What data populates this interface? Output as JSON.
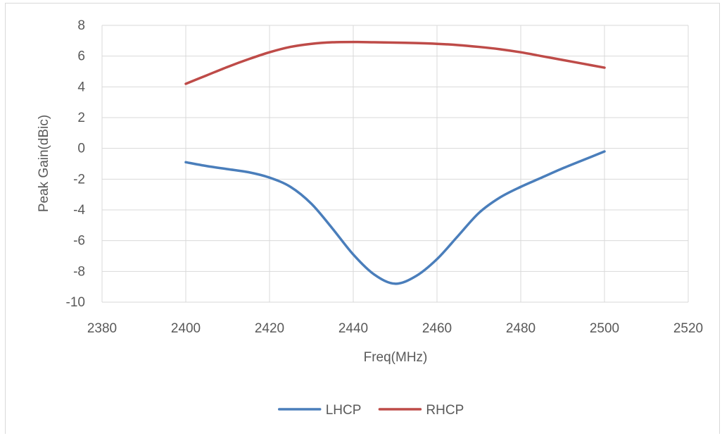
{
  "chart_data": {
    "type": "line",
    "title": "",
    "xlabel": "Freq(MHz)",
    "ylabel": "Peak Gain(dBic)",
    "xlim": [
      2380,
      2520
    ],
    "ylim": [
      -10,
      8
    ],
    "xticks": [
      2380,
      2400,
      2420,
      2440,
      2460,
      2480,
      2500,
      2520
    ],
    "yticks": [
      -10,
      -8,
      -6,
      -4,
      -2,
      0,
      2,
      4,
      6,
      8
    ],
    "grid": true,
    "legend_position": "bottom",
    "series": [
      {
        "name": "LHCP",
        "color": "#4a7ebb",
        "x": [
          2400,
          2405,
          2410,
          2415,
          2420,
          2425,
          2430,
          2435,
          2440,
          2445,
          2450,
          2455,
          2460,
          2465,
          2470,
          2475,
          2480,
          2485,
          2490,
          2495,
          2500
        ],
        "y": [
          -0.9,
          -1.15,
          -1.35,
          -1.55,
          -1.9,
          -2.5,
          -3.6,
          -5.2,
          -6.9,
          -8.2,
          -8.8,
          -8.3,
          -7.2,
          -5.7,
          -4.2,
          -3.2,
          -2.5,
          -1.9,
          -1.3,
          -0.75,
          -0.2
        ]
      },
      {
        "name": "RHCP",
        "color": "#be4b48",
        "x": [
          2400,
          2405,
          2410,
          2415,
          2420,
          2425,
          2430,
          2435,
          2440,
          2445,
          2450,
          2455,
          2460,
          2465,
          2470,
          2475,
          2480,
          2485,
          2490,
          2495,
          2500
        ],
        "y": [
          4.2,
          4.75,
          5.3,
          5.8,
          6.25,
          6.6,
          6.8,
          6.9,
          6.92,
          6.9,
          6.88,
          6.85,
          6.8,
          6.72,
          6.6,
          6.45,
          6.25,
          6.0,
          5.75,
          5.5,
          5.25
        ]
      }
    ]
  }
}
